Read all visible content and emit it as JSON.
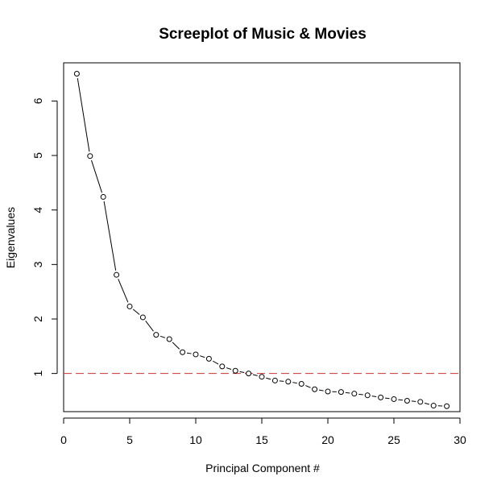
{
  "chart_data": {
    "type": "line",
    "title": "Screeplot of Music & Movies",
    "xlabel": "Principal Component #",
    "ylabel": "Eigenvalues",
    "xlim": [
      0,
      30
    ],
    "ylim": [
      0.3,
      6.7
    ],
    "x_ticks": [
      0,
      5,
      10,
      15,
      20,
      25,
      30
    ],
    "y_ticks": [
      1,
      2,
      3,
      4,
      5,
      6
    ],
    "grid": false,
    "legend": "none",
    "marker": "open-circle",
    "line_color": "#000000",
    "series": [
      {
        "x": [
          1,
          2,
          3,
          4,
          5,
          6,
          7,
          8,
          9,
          10,
          11,
          12,
          13,
          14,
          15,
          16,
          17,
          18,
          19,
          20,
          21,
          22,
          23,
          24,
          25,
          26,
          27,
          28,
          29
        ],
        "values": [
          6.5,
          4.99,
          4.24,
          2.81,
          2.23,
          2.03,
          1.71,
          1.63,
          1.39,
          1.35,
          1.27,
          1.13,
          1.05,
          1.0,
          0.94,
          0.87,
          0.85,
          0.81,
          0.71,
          0.67,
          0.66,
          0.63,
          0.6,
          0.56,
          0.53,
          0.5,
          0.48,
          0.41,
          0.4
        ]
      }
    ],
    "reference_line": {
      "y": 1,
      "color": "#cc3333",
      "style": "dashed"
    }
  }
}
